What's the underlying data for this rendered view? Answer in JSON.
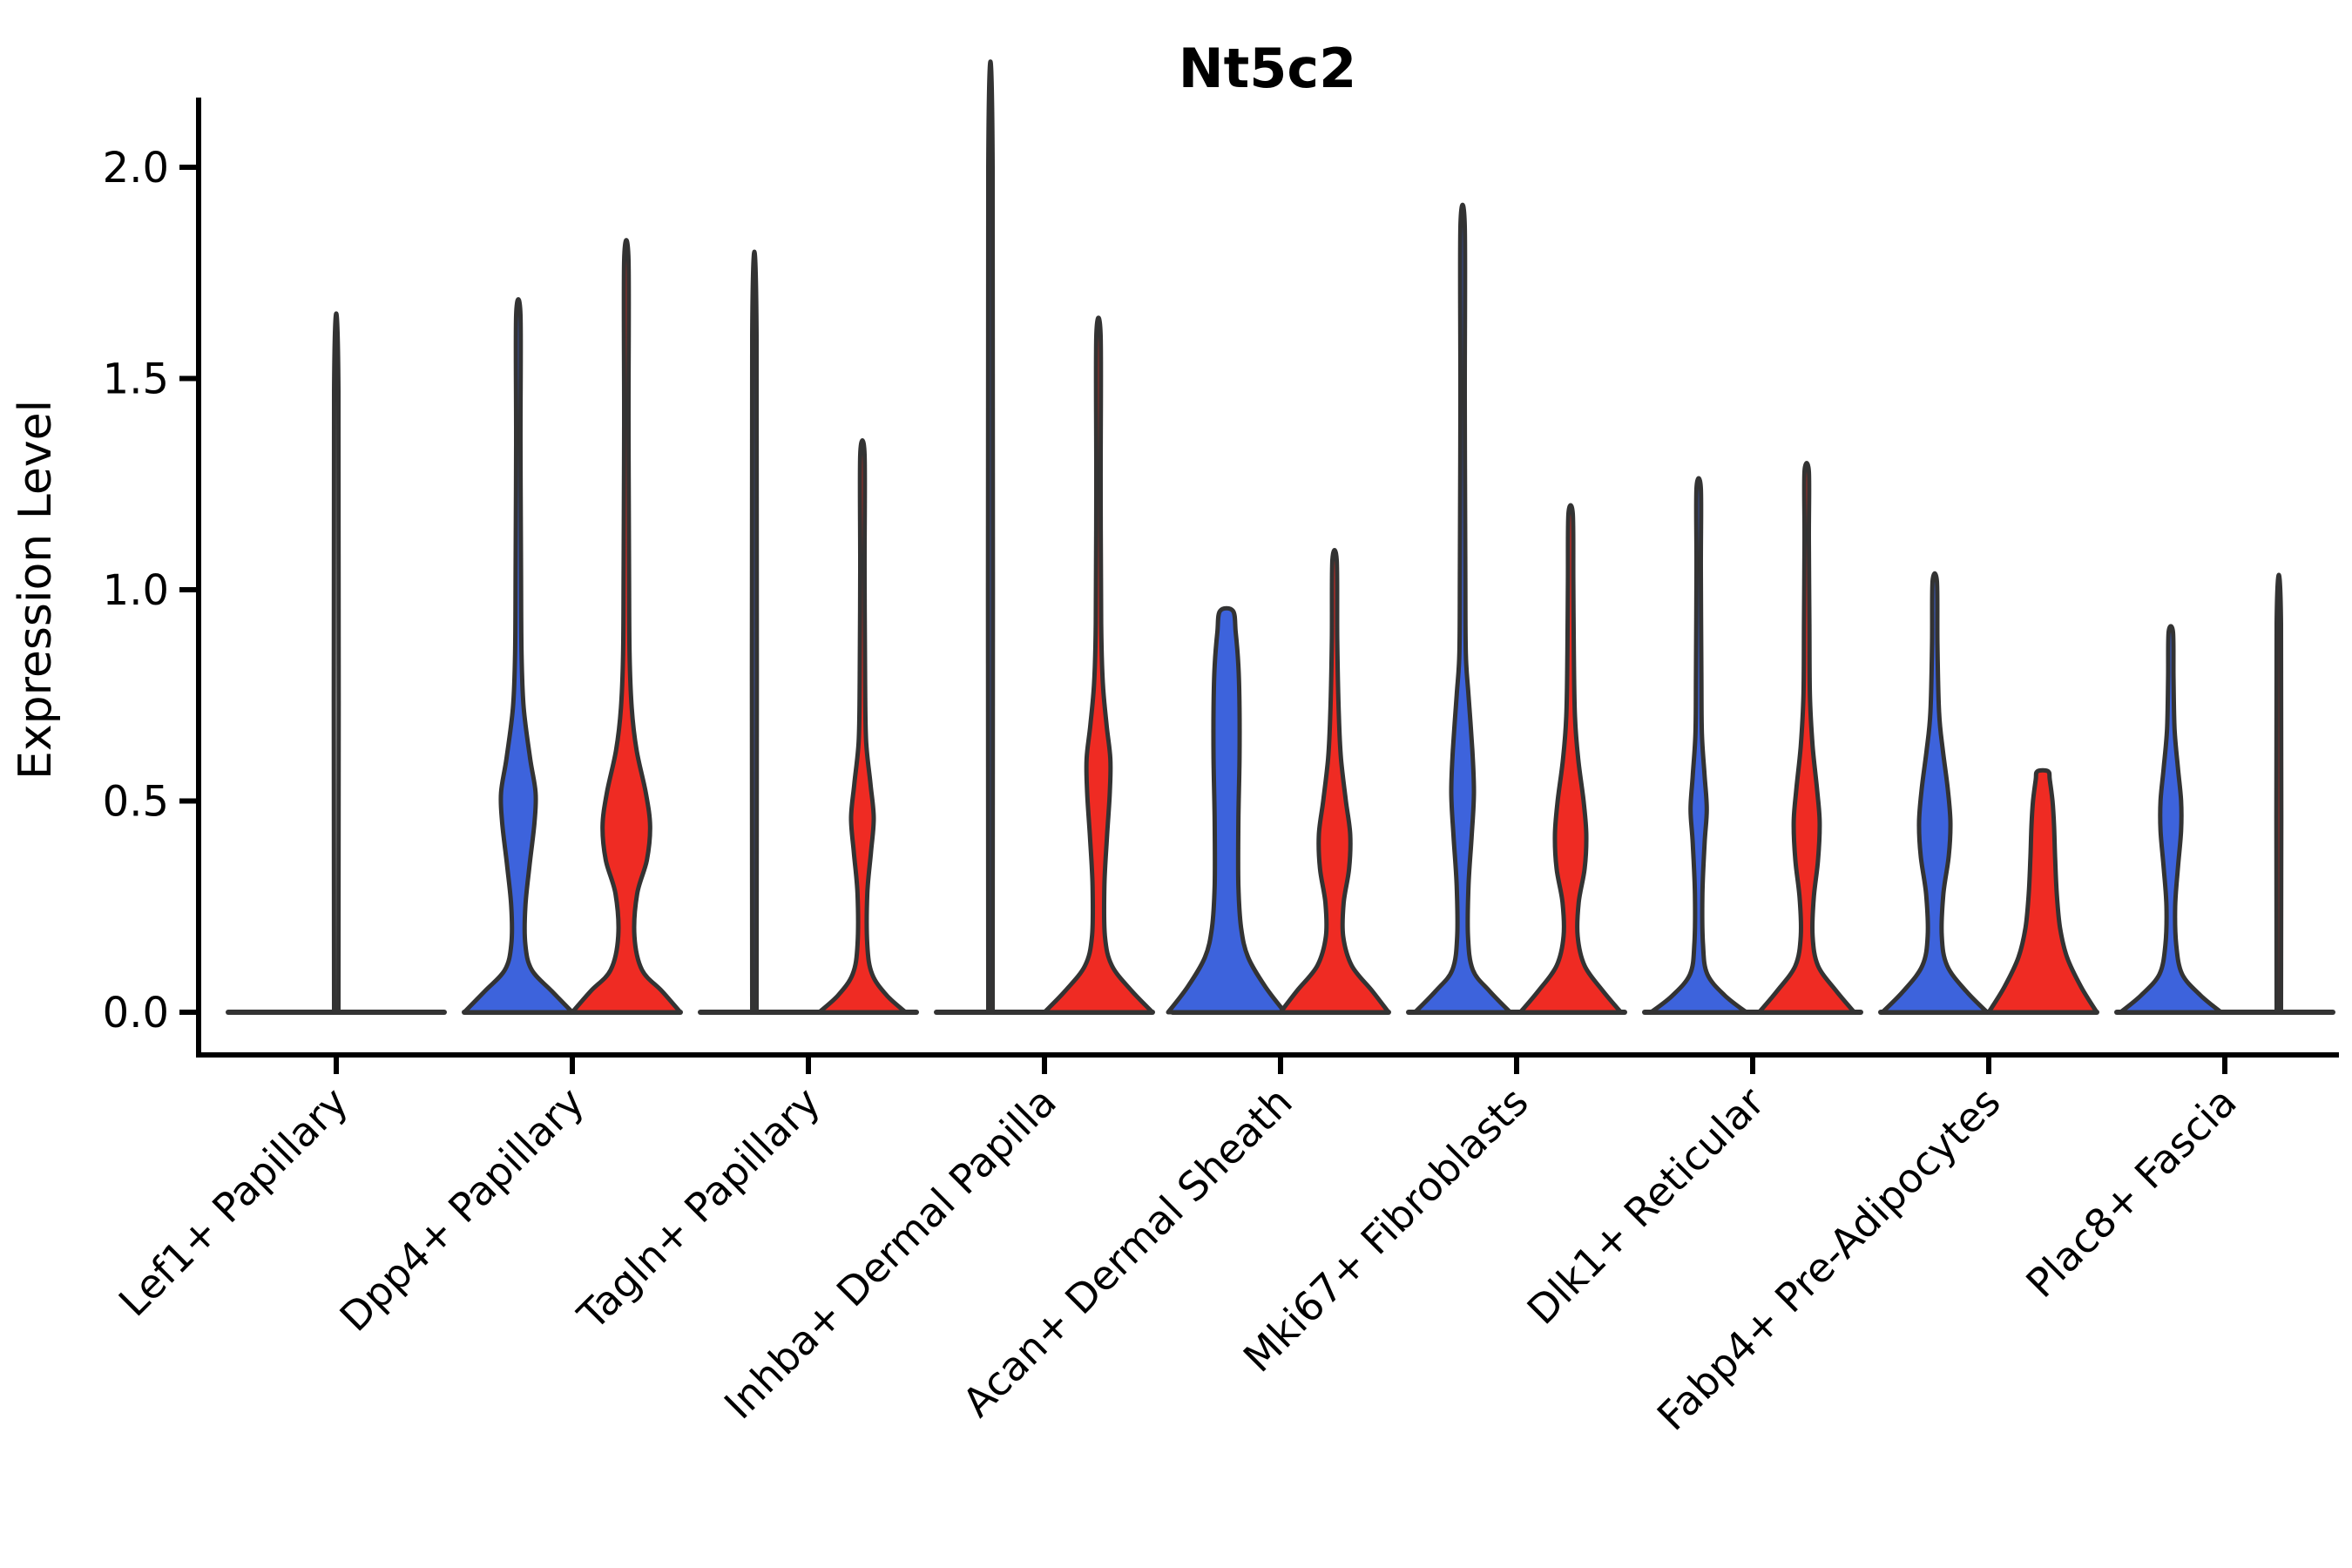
{
  "figure": {
    "title": "Nt5c2",
    "y_axis_label": "Expression Level"
  },
  "colors": {
    "blue": "#3D63DC",
    "red": "#EF2B23",
    "neutral": "none",
    "outline": "#333333",
    "axis": "#000000",
    "background": "#ffffff"
  },
  "chart_data": {
    "type": "violin",
    "title": "Nt5c2",
    "ylabel": "Expression Level",
    "xlabel": "",
    "ylim": [
      0,
      2.05
    ],
    "grid": false,
    "legend_position": "none",
    "ytick_values": [
      0,
      0.5,
      1,
      1.5,
      2
    ],
    "yticks": [
      "0.0",
      "0.5",
      "1.0",
      "1.5",
      "2.0"
    ],
    "categories": [
      "Lef1+ Papillary",
      "Dpp4+ Papillary",
      "Tagln+ Papillary",
      "Inhba+ Dermal Papilla",
      "Acan+ Dermal Sheath",
      "Mki67+ Fibroblasts",
      "Dlk1+ Reticular",
      "Fabp4+ Pre-Adipocytes",
      "Plac8+ Fascia"
    ],
    "series": [
      {
        "name": "group-blue",
        "color_key": "blue",
        "max_expression": [
          null,
          1.65,
          1.6,
          2.0,
          0.95,
          1.86,
          1.24,
          1.02,
          0.9
        ]
      },
      {
        "name": "group-red",
        "color_key": "red",
        "max_expression": [
          null,
          1.78,
          1.32,
          1.6,
          1.07,
          1.18,
          1.28,
          0.57,
          0.92
        ]
      }
    ],
    "violins": [
      {
        "category": "Lef1+ Papillary",
        "items": [
          {
            "group": "unsplit-spike",
            "color_key": "neutral",
            "position": "center",
            "max": 1.47,
            "profile": [
              [
                0,
                0.04
              ],
              [
                1.47,
                0.04
              ]
            ]
          }
        ]
      },
      {
        "category": "Dpp4+ Papillary",
        "items": [
          {
            "group": "blue",
            "color_key": "blue",
            "position": "left",
            "max": 1.65,
            "profile": [
              [
                0,
                1.0
              ],
              [
                0.05,
                0.62
              ],
              [
                0.1,
                0.25
              ],
              [
                0.16,
                0.13
              ],
              [
                0.25,
                0.13
              ],
              [
                0.35,
                0.21
              ],
              [
                0.45,
                0.3
              ],
              [
                0.52,
                0.32
              ],
              [
                0.6,
                0.22
              ],
              [
                0.72,
                0.1
              ],
              [
                0.85,
                0.06
              ],
              [
                1.05,
                0.05
              ],
              [
                1.35,
                0.04
              ],
              [
                1.65,
                0.04
              ]
            ]
          },
          {
            "group": "red",
            "color_key": "red",
            "position": "right",
            "max": 1.78,
            "profile": [
              [
                0,
                1.0
              ],
              [
                0.05,
                0.66
              ],
              [
                0.1,
                0.29
              ],
              [
                0.18,
                0.15
              ],
              [
                0.28,
                0.2
              ],
              [
                0.36,
                0.38
              ],
              [
                0.44,
                0.44
              ],
              [
                0.52,
                0.36
              ],
              [
                0.62,
                0.19
              ],
              [
                0.72,
                0.1
              ],
              [
                0.85,
                0.06
              ],
              [
                1.05,
                0.05
              ],
              [
                1.4,
                0.04
              ],
              [
                1.78,
                0.04
              ]
            ]
          }
        ]
      },
      {
        "category": "Tagln+ Papillary",
        "items": [
          {
            "group": "blue",
            "color_key": "blue",
            "position": "left",
            "max": 1.6,
            "profile": [
              [
                0,
                0.04
              ],
              [
                1.6,
                0.04
              ]
            ]
          },
          {
            "group": "red",
            "color_key": "red",
            "position": "right",
            "max": 1.32,
            "profile": [
              [
                0,
                0.8
              ],
              [
                0.04,
                0.45
              ],
              [
                0.09,
                0.18
              ],
              [
                0.16,
                0.09
              ],
              [
                0.28,
                0.09
              ],
              [
                0.38,
                0.16
              ],
              [
                0.46,
                0.21
              ],
              [
                0.54,
                0.15
              ],
              [
                0.64,
                0.07
              ],
              [
                0.78,
                0.05
              ],
              [
                1.05,
                0.04
              ],
              [
                1.32,
                0.04
              ]
            ]
          }
        ]
      },
      {
        "category": "Inhba+ Dermal Papilla",
        "items": [
          {
            "group": "blue",
            "color_key": "blue",
            "position": "left",
            "max": 2.0,
            "profile": [
              [
                0,
                0.04
              ],
              [
                2.0,
                0.04
              ]
            ]
          },
          {
            "group": "red",
            "color_key": "red",
            "position": "right",
            "max": 1.6,
            "profile": [
              [
                0,
                1.0
              ],
              [
                0.05,
                0.62
              ],
              [
                0.11,
                0.25
              ],
              [
                0.18,
                0.12
              ],
              [
                0.3,
                0.11
              ],
              [
                0.42,
                0.16
              ],
              [
                0.52,
                0.21
              ],
              [
                0.6,
                0.22
              ],
              [
                0.68,
                0.15
              ],
              [
                0.78,
                0.08
              ],
              [
                0.92,
                0.05
              ],
              [
                1.25,
                0.04
              ],
              [
                1.6,
                0.04
              ]
            ]
          }
        ]
      },
      {
        "category": "Acan+ Dermal Sheath",
        "items": [
          {
            "group": "blue",
            "color_key": "blue",
            "position": "left",
            "max": 0.95,
            "profile": [
              [
                0,
                1.08
              ],
              [
                0.06,
                0.72
              ],
              [
                0.13,
                0.4
              ],
              [
                0.2,
                0.27
              ],
              [
                0.3,
                0.22
              ],
              [
                0.45,
                0.22
              ],
              [
                0.6,
                0.24
              ],
              [
                0.72,
                0.24
              ],
              [
                0.82,
                0.22
              ],
              [
                0.9,
                0.17
              ],
              [
                0.95,
                0.12
              ]
            ]
          },
          {
            "group": "red",
            "color_key": "red",
            "position": "right",
            "max": 1.07,
            "profile": [
              [
                0,
                1.0
              ],
              [
                0.05,
                0.7
              ],
              [
                0.11,
                0.32
              ],
              [
                0.18,
                0.16
              ],
              [
                0.26,
                0.17
              ],
              [
                0.34,
                0.27
              ],
              [
                0.42,
                0.29
              ],
              [
                0.5,
                0.21
              ],
              [
                0.6,
                0.12
              ],
              [
                0.7,
                0.08
              ],
              [
                0.88,
                0.05
              ],
              [
                1.07,
                0.04
              ]
            ]
          }
        ]
      },
      {
        "category": "Mki67+ Fibroblasts",
        "items": [
          {
            "group": "blue",
            "color_key": "blue",
            "position": "left",
            "max": 1.86,
            "profile": [
              [
                0,
                0.88
              ],
              [
                0.05,
                0.5
              ],
              [
                0.1,
                0.19
              ],
              [
                0.18,
                0.1
              ],
              [
                0.3,
                0.11
              ],
              [
                0.42,
                0.17
              ],
              [
                0.52,
                0.21
              ],
              [
                0.62,
                0.18
              ],
              [
                0.75,
                0.11
              ],
              [
                0.85,
                0.06
              ],
              [
                1.05,
                0.05
              ],
              [
                1.45,
                0.04
              ],
              [
                1.86,
                0.04
              ]
            ]
          },
          {
            "group": "red",
            "color_key": "red",
            "position": "right",
            "max": 1.18,
            "profile": [
              [
                0,
                0.93
              ],
              [
                0.05,
                0.6
              ],
              [
                0.11,
                0.26
              ],
              [
                0.18,
                0.13
              ],
              [
                0.26,
                0.15
              ],
              [
                0.34,
                0.26
              ],
              [
                0.42,
                0.29
              ],
              [
                0.5,
                0.24
              ],
              [
                0.6,
                0.14
              ],
              [
                0.7,
                0.08
              ],
              [
                0.85,
                0.06
              ],
              [
                1.02,
                0.05
              ],
              [
                1.18,
                0.04
              ]
            ]
          }
        ]
      },
      {
        "category": "Dlk1+ Reticular",
        "items": [
          {
            "group": "blue",
            "color_key": "blue",
            "position": "left",
            "max": 1.24,
            "profile": [
              [
                0,
                0.88
              ],
              [
                0.04,
                0.48
              ],
              [
                0.09,
                0.16
              ],
              [
                0.16,
                0.08
              ],
              [
                0.28,
                0.07
              ],
              [
                0.4,
                0.11
              ],
              [
                0.48,
                0.15
              ],
              [
                0.56,
                0.11
              ],
              [
                0.66,
                0.06
              ],
              [
                0.8,
                0.05
              ],
              [
                1.05,
                0.04
              ],
              [
                1.24,
                0.04
              ]
            ]
          },
          {
            "group": "red",
            "color_key": "red",
            "position": "right",
            "max": 1.28,
            "profile": [
              [
                0,
                0.88
              ],
              [
                0.05,
                0.55
              ],
              [
                0.11,
                0.21
              ],
              [
                0.18,
                0.11
              ],
              [
                0.27,
                0.13
              ],
              [
                0.36,
                0.21
              ],
              [
                0.45,
                0.24
              ],
              [
                0.53,
                0.19
              ],
              [
                0.63,
                0.11
              ],
              [
                0.75,
                0.06
              ],
              [
                0.92,
                0.05
              ],
              [
                1.12,
                0.04
              ],
              [
                1.28,
                0.04
              ]
            ]
          }
        ]
      },
      {
        "category": "Fabp4+ Pre-Adipocytes",
        "items": [
          {
            "group": "blue",
            "color_key": "blue",
            "position": "left",
            "max": 1.02,
            "profile": [
              [
                0,
                0.97
              ],
              [
                0.05,
                0.58
              ],
              [
                0.11,
                0.23
              ],
              [
                0.18,
                0.13
              ],
              [
                0.28,
                0.16
              ],
              [
                0.37,
                0.26
              ],
              [
                0.45,
                0.29
              ],
              [
                0.53,
                0.24
              ],
              [
                0.62,
                0.15
              ],
              [
                0.71,
                0.08
              ],
              [
                0.87,
                0.05
              ],
              [
                1.02,
                0.04
              ]
            ]
          },
          {
            "group": "red",
            "color_key": "red",
            "position": "right",
            "max": 0.57,
            "profile": [
              [
                0,
                1.0
              ],
              [
                0.06,
                0.71
              ],
              [
                0.13,
                0.45
              ],
              [
                0.2,
                0.32
              ],
              [
                0.28,
                0.26
              ],
              [
                0.36,
                0.23
              ],
              [
                0.44,
                0.21
              ],
              [
                0.5,
                0.18
              ],
              [
                0.55,
                0.13
              ],
              [
                0.57,
                0.1
              ]
            ]
          }
        ]
      },
      {
        "category": "Plac8+ Fascia",
        "items": [
          {
            "group": "blue",
            "color_key": "blue",
            "position": "left",
            "max": 0.9,
            "profile": [
              [
                0,
                0.93
              ],
              [
                0.04,
                0.55
              ],
              [
                0.09,
                0.21
              ],
              [
                0.16,
                0.1
              ],
              [
                0.25,
                0.08
              ],
              [
                0.34,
                0.13
              ],
              [
                0.43,
                0.19
              ],
              [
                0.5,
                0.19
              ],
              [
                0.58,
                0.13
              ],
              [
                0.67,
                0.07
              ],
              [
                0.79,
                0.05
              ],
              [
                0.9,
                0.04
              ]
            ]
          },
          {
            "group": "red",
            "color_key": "red",
            "position": "right",
            "max": 0.92,
            "profile": [
              [
                0,
                0.04
              ],
              [
                0.92,
                0.04
              ]
            ]
          }
        ]
      }
    ]
  }
}
